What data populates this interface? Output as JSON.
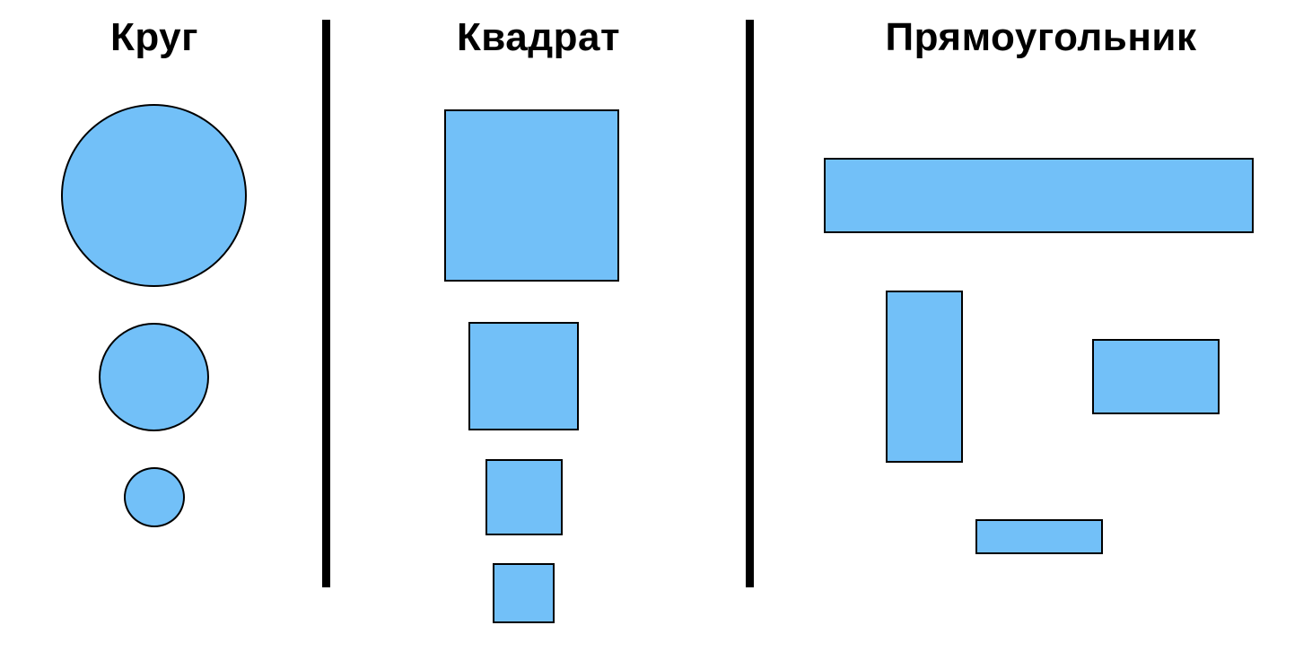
{
  "headings": {
    "circle": "Круг",
    "square": "Квадрат",
    "rectangle": "Прямоугольник"
  },
  "colors": {
    "fill": "#72c0f8",
    "stroke": "#000000",
    "divider": "#000000",
    "background": "#ffffff"
  }
}
